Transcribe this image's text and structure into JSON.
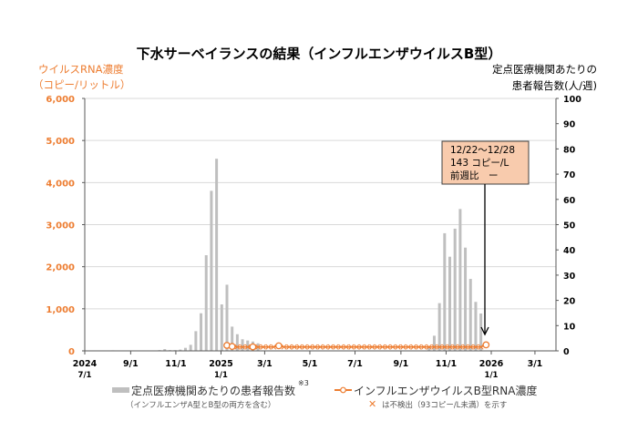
{
  "chart_data": {
    "type": "bar+line",
    "title": "下水サーベイランスの結果（インフルエンザウイルスB型）",
    "y_left": {
      "label_lines": [
        "ウイルスRNA濃度",
        "（コピー/リットル）"
      ],
      "range": [
        0,
        6000
      ],
      "ticks": [
        "0",
        "1,000",
        "2,000",
        "3,000",
        "4,000",
        "5,000",
        "6,000"
      ],
      "color": "#ed7d31"
    },
    "y_right": {
      "label_lines": [
        "定点医療機関あたりの",
        "患者報告数(人/週)"
      ],
      "range": [
        0,
        100
      ],
      "ticks": [
        "0",
        "10",
        "20",
        "30",
        "40",
        "50",
        "60",
        "70",
        "80",
        "90",
        "100"
      ]
    },
    "x_axis": {
      "range": [
        "2024-07-01",
        "2026-03-31"
      ],
      "ticks": [
        {
          "date": "2024-07-01",
          "label": "2024",
          "sub": "7/1"
        },
        {
          "date": "2024-09-01",
          "label": "9/1",
          "sub": ""
        },
        {
          "date": "2024-11-01",
          "label": "11/1",
          "sub": ""
        },
        {
          "date": "2025-01-01",
          "label": "2025",
          "sub": "1/1"
        },
        {
          "date": "2025-03-01",
          "label": "3/1",
          "sub": ""
        },
        {
          "date": "2025-05-01",
          "label": "5/1",
          "sub": ""
        },
        {
          "date": "2025-07-01",
          "label": "7/1",
          "sub": ""
        },
        {
          "date": "2025-09-01",
          "label": "9/1",
          "sub": ""
        },
        {
          "date": "2025-11-01",
          "label": "11/1",
          "sub": ""
        },
        {
          "date": "2026-01-01",
          "label": "2026",
          "sub": "1/1"
        },
        {
          "date": "2026-03-01",
          "label": "3/1",
          "sub": ""
        }
      ]
    },
    "grid": true,
    "bar_series": {
      "name": "定点医療機関あたりの患者報告数",
      "note_mark": "※3",
      "sub_note": "（インフルエンザA型とB型の両方を含む）",
      "axis": "right",
      "color": "#bfbfbf",
      "weeks": [
        [
          "2024-08-05",
          0.2
        ],
        [
          "2024-10-07",
          0.3
        ],
        [
          "2024-10-14",
          0.7
        ],
        [
          "2024-10-21",
          0.3
        ],
        [
          "2024-10-28",
          0.3
        ],
        [
          "2024-11-04",
          0.5
        ],
        [
          "2024-11-11",
          1.2
        ],
        [
          "2024-11-18",
          2.4
        ],
        [
          "2024-11-25",
          7.8
        ],
        [
          "2024-12-02",
          14.9
        ],
        [
          "2024-12-09",
          37.9
        ],
        [
          "2024-12-16",
          63.4
        ],
        [
          "2024-12-23",
          76.1
        ],
        [
          "2024-12-30",
          18.4
        ],
        [
          "2025-01-06",
          26.2
        ],
        [
          "2025-01-13",
          9.6
        ],
        [
          "2025-01-20",
          6.6
        ],
        [
          "2025-01-27",
          4.6
        ],
        [
          "2025-02-03",
          4.1
        ],
        [
          "2025-02-10",
          3.7
        ],
        [
          "2025-02-17",
          3.0
        ],
        [
          "2025-10-06",
          1.5
        ],
        [
          "2025-10-13",
          6.0
        ],
        [
          "2025-10-20",
          18.9
        ],
        [
          "2025-10-27",
          46.6
        ],
        [
          "2025-11-03",
          37.3
        ],
        [
          "2025-11-10",
          48.4
        ],
        [
          "2025-11-17",
          56.2
        ],
        [
          "2025-11-24",
          40.9
        ],
        [
          "2025-12-01",
          28.5
        ],
        [
          "2025-12-08",
          19.4
        ],
        [
          "2025-12-15",
          14.8
        ]
      ]
    },
    "line_series": {
      "name": "インフルエンザウイルスB型RNA濃度",
      "sub_note_mark": "✕",
      "sub_note": "は不検出（93コピー/L未満）を示す",
      "axis": "left",
      "color": "#ed7d31",
      "not_detected_level": 93,
      "first_week": "2025-01-06",
      "weekly_values": [
        130,
        105,
        "ND",
        "ND",
        "ND",
        95,
        "ND",
        "ND",
        "ND",
        "ND",
        120,
        "ND",
        "ND",
        "ND",
        "ND",
        "ND",
        "ND",
        "ND",
        "ND",
        "ND",
        "ND",
        "ND",
        "ND",
        "ND",
        "ND",
        "ND",
        "ND",
        "ND",
        "ND",
        "ND",
        "ND",
        "ND",
        "ND",
        "ND",
        "ND",
        "ND",
        "ND",
        "ND",
        "ND",
        "ND",
        "ND",
        "ND",
        "ND",
        "ND",
        "ND",
        "ND",
        "ND",
        "ND",
        "ND",
        "ND",
        143
      ]
    },
    "annotation": {
      "lines": [
        "12/22～12/28",
        "143 コピー/L",
        "前週比　ー"
      ],
      "fill": "#f8cbad"
    }
  }
}
